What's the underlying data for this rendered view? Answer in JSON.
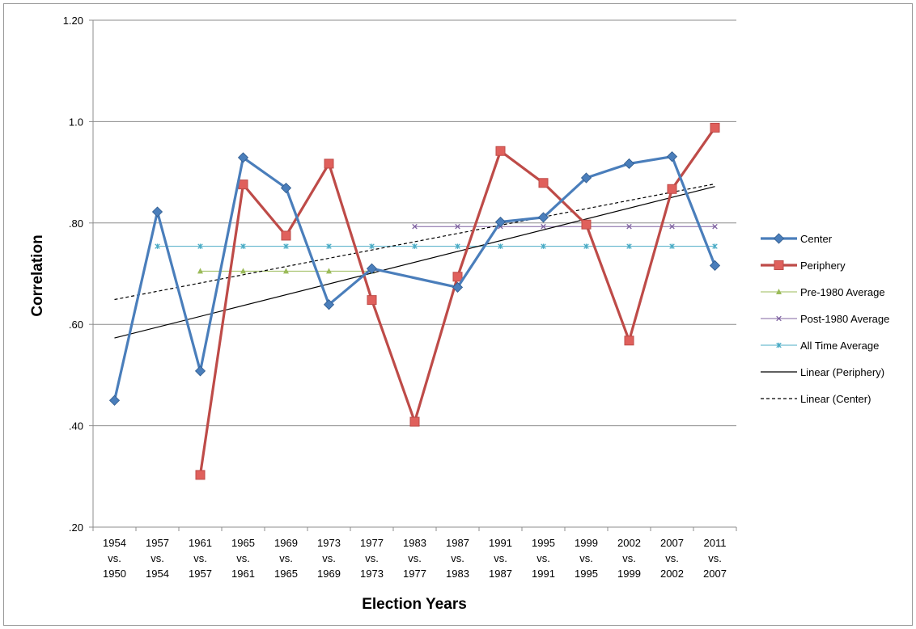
{
  "chart_data": {
    "type": "line",
    "title": "",
    "xlabel": "Election Years",
    "ylabel": "Correlation",
    "ylim": [
      0.2,
      1.2
    ],
    "y_ticks": [
      {
        "value": 1.2,
        "label": "1.20"
      },
      {
        "value": 1.0,
        "label": "1.0"
      },
      {
        "value": 0.8,
        "label": ".80"
      },
      {
        "value": 0.6,
        "label": ".60"
      },
      {
        "value": 0.4,
        "label": ".40"
      },
      {
        "value": 0.2,
        "label": ".20"
      }
    ],
    "grid": true,
    "legend_position": "right",
    "categories": [
      [
        "1954",
        "vs.",
        "1950"
      ],
      [
        "1957",
        "vs.",
        "1954"
      ],
      [
        "1961",
        "vs.",
        "1957"
      ],
      [
        "1965",
        "vs.",
        "1961"
      ],
      [
        "1969",
        "vs.",
        "1965"
      ],
      [
        "1973",
        "vs.",
        "1969"
      ],
      [
        "1977",
        "vs.",
        "1973"
      ],
      [
        "1983",
        "vs.",
        "1977"
      ],
      [
        "1987",
        "vs.",
        "1983"
      ],
      [
        "1991",
        "vs.",
        "1987"
      ],
      [
        "1995",
        "vs.",
        "1991"
      ],
      [
        "1999",
        "vs.",
        "1995"
      ],
      [
        "2002",
        "vs.",
        "1999"
      ],
      [
        "2007",
        "vs.",
        "2002"
      ],
      [
        "2011",
        "vs.",
        "2007"
      ]
    ],
    "series": [
      {
        "name": "Center",
        "color": "#4a7ebb",
        "marker": "diamond",
        "style": "line-thick",
        "values": [
          0.45,
          0.822,
          0.508,
          0.929,
          0.869,
          0.639,
          0.71,
          null,
          0.673,
          0.802,
          0.811,
          0.889,
          0.917,
          0.931,
          0.716
        ]
      },
      {
        "name": "Periphery",
        "color": "#be4b48",
        "marker": "square",
        "style": "line-thick",
        "values": [
          null,
          null,
          0.303,
          0.876,
          0.775,
          0.917,
          0.648,
          0.408,
          0.694,
          0.942,
          0.879,
          0.797,
          0.568,
          0.867,
          0.988
        ]
      },
      {
        "name": "Pre-1980 Average",
        "color": "#9bbb59",
        "marker": "triangle",
        "style": "line-thin",
        "values": [
          null,
          null,
          0.705,
          0.705,
          0.705,
          0.705,
          0.705,
          null,
          null,
          null,
          null,
          null,
          null,
          null,
          null
        ]
      },
      {
        "name": "Post-1980 Average",
        "color": "#8064a2",
        "marker": "x",
        "style": "line-thin",
        "values": [
          null,
          null,
          null,
          null,
          null,
          null,
          null,
          0.793,
          0.793,
          0.793,
          0.793,
          0.793,
          0.793,
          0.793,
          0.793
        ]
      },
      {
        "name": "All Time Average",
        "color": "#4bacc6",
        "marker": "star",
        "style": "line-thin",
        "values": [
          null,
          0.754,
          0.754,
          0.754,
          0.754,
          0.754,
          0.754,
          0.754,
          0.754,
          0.754,
          0.754,
          0.754,
          0.754,
          0.754,
          0.754
        ]
      },
      {
        "name": "Linear (Periphery)",
        "color": "#000000",
        "marker": "none",
        "style": "trend-solid",
        "values": [
          0.573,
          null,
          null,
          null,
          null,
          null,
          null,
          null,
          null,
          null,
          null,
          null,
          null,
          null,
          0.872
        ]
      },
      {
        "name": "Linear (Center)",
        "color": "#000000",
        "marker": "none",
        "style": "trend-dashed",
        "values": [
          0.649,
          null,
          null,
          null,
          null,
          null,
          null,
          null,
          null,
          null,
          null,
          null,
          null,
          null,
          0.877
        ]
      }
    ]
  }
}
